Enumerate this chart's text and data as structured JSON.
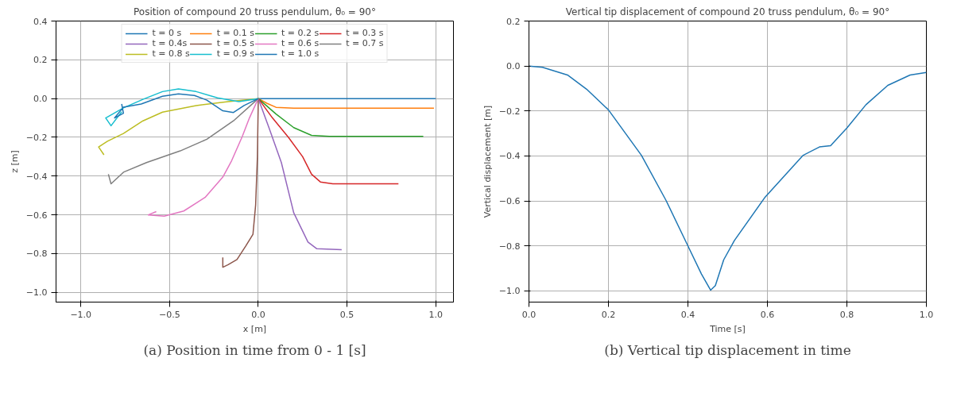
{
  "chart_data": [
    {
      "type": "line",
      "title": "Position of compound 20 truss pendulum, θ₀ = 90°",
      "xlabel": "x [m]",
      "ylabel": "z [m]",
      "xlim": [
        -1.14,
        1.1
      ],
      "ylim": [
        -1.05,
        0.4
      ],
      "xticks": [
        {
          "value": -1,
          "label": "−1.0"
        },
        {
          "value": -0.5,
          "label": "−0.5"
        },
        {
          "value": 0,
          "label": "0.0"
        },
        {
          "value": 0.5,
          "label": "0.5"
        },
        {
          "value": 1,
          "label": "1.0"
        }
      ],
      "yticks": [
        {
          "value": -1,
          "label": "−1.0"
        },
        {
          "value": -0.8,
          "label": "−0.8"
        },
        {
          "value": -0.6,
          "label": "−0.6"
        },
        {
          "value": -0.4,
          "label": "−0.4"
        },
        {
          "value": -0.2,
          "label": "−0.2"
        },
        {
          "value": 0,
          "label": "0.0"
        },
        {
          "value": 0.2,
          "label": "0.2"
        },
        {
          "value": 0.4,
          "label": "0.4"
        }
      ],
      "grid": true,
      "legend": "top",
      "annotations": [
        "(a) Position in time from 0 - 1 [s]"
      ],
      "series": [
        {
          "name": "t = 0 s",
          "color": "#1f77b4",
          "x": [
            0,
            1
          ],
          "values": [
            0,
            0
          ]
        },
        {
          "name": "t = 0.1 s",
          "color": "#ff7f0e",
          "x": [
            0,
            0.05,
            0.1,
            0.2,
            0.99
          ],
          "values": [
            0,
            -0.025,
            -0.045,
            -0.05,
            -0.05
          ]
        },
        {
          "name": "t = 0.2 s",
          "color": "#2ca02c",
          "x": [
            0,
            0.1,
            0.2,
            0.3,
            0.4,
            0.93
          ],
          "values": [
            0,
            -0.08,
            -0.15,
            -0.19,
            -0.195,
            -0.195
          ]
        },
        {
          "name": "t = 0.3 s",
          "color": "#d62728",
          "x": [
            0,
            0.08,
            0.17,
            0.25,
            0.3,
            0.35,
            0.42,
            0.79
          ],
          "values": [
            0,
            -0.1,
            -0.2,
            -0.3,
            -0.39,
            -0.43,
            -0.44,
            -0.44
          ]
        },
        {
          "name": "t = 0.4s",
          "color": "#9467bd",
          "x": [
            0,
            0.06,
            0.13,
            0.2,
            0.28,
            0.33,
            0.47
          ],
          "values": [
            0,
            -0.15,
            -0.33,
            -0.59,
            -0.74,
            -0.775,
            -0.78
          ]
        },
        {
          "name": "t = 0.5 s",
          "color": "#8c564b",
          "x": [
            0,
            -0.005,
            -0.015,
            -0.03,
            -0.07,
            -0.12,
            -0.17,
            -0.2,
            -0.2
          ],
          "values": [
            0,
            -0.3,
            -0.55,
            -0.7,
            -0.76,
            -0.83,
            -0.857,
            -0.87,
            -0.82
          ]
        },
        {
          "name": "t = 0.6 s",
          "color": "#e377c2",
          "x": [
            0,
            -0.05,
            -0.09,
            -0.15,
            -0.2,
            -0.3,
            -0.42,
            -0.53,
            -0.62,
            -0.575
          ],
          "values": [
            0,
            -0.1,
            -0.195,
            -0.32,
            -0.405,
            -0.51,
            -0.58,
            -0.607,
            -0.6,
            -0.583
          ]
        },
        {
          "name": "t = 0.7 s",
          "color": "#7f7f7f",
          "x": [
            0,
            -0.14,
            -0.29,
            -0.44,
            -0.63,
            -0.76,
            -0.83,
            -0.845
          ],
          "values": [
            0,
            -0.115,
            -0.21,
            -0.27,
            -0.33,
            -0.38,
            -0.44,
            -0.39
          ]
        },
        {
          "name": "t = 0.8 s",
          "color": "#bcbd22",
          "x": [
            0,
            -0.17,
            -0.35,
            -0.54,
            -0.65,
            -0.76,
            -0.85,
            -0.9,
            -0.87
          ],
          "values": [
            0,
            -0.016,
            -0.036,
            -0.07,
            -0.115,
            -0.18,
            -0.22,
            -0.25,
            -0.29
          ]
        },
        {
          "name": "t = 0.9 s",
          "color": "#17becf",
          "x": [
            0,
            -0.11,
            -0.23,
            -0.35,
            -0.45,
            -0.54,
            -0.65,
            -0.76,
            -0.86,
            -0.83,
            -0.77
          ],
          "values": [
            0,
            -0.016,
            0.004,
            0.036,
            0.05,
            0.036,
            -0.004,
            -0.048,
            -0.1,
            -0.14,
            -0.068
          ]
        },
        {
          "name": "t = 1.0 s",
          "color": "#1f77b4",
          "x": [
            0,
            -0.08,
            -0.14,
            -0.2,
            -0.29,
            -0.36,
            -0.45,
            -0.54,
            -0.66,
            -0.76,
            -0.81,
            -0.76,
            -0.77
          ],
          "values": [
            0,
            -0.036,
            -0.072,
            -0.063,
            -0.008,
            0.016,
            0.024,
            0.012,
            -0.028,
            -0.044,
            -0.1,
            -0.076,
            -0.028
          ]
        }
      ]
    },
    {
      "type": "line",
      "title": "Vertical tip displacement of compound 20 truss pendulum, θ₀ = 90°",
      "xlabel": "Time [s]",
      "ylabel": "Vertical displacement [m]",
      "xlim": [
        0,
        1
      ],
      "ylim": [
        -1.05,
        0.2
      ],
      "xticks": [
        {
          "value": 0,
          "label": "0.0"
        },
        {
          "value": 0.2,
          "label": "0.2"
        },
        {
          "value": 0.4,
          "label": "0.4"
        },
        {
          "value": 0.6,
          "label": "0.6"
        },
        {
          "value": 0.8,
          "label": "0.8"
        },
        {
          "value": 1,
          "label": "1.0"
        }
      ],
      "yticks": [
        {
          "value": -1,
          "label": "−1.0"
        },
        {
          "value": -0.8,
          "label": "−0.8"
        },
        {
          "value": -0.6,
          "label": "−0.6"
        },
        {
          "value": -0.4,
          "label": "−0.4"
        },
        {
          "value": -0.2,
          "label": "−0.2"
        },
        {
          "value": 0,
          "label": "0.0"
        },
        {
          "value": 0.2,
          "label": "0.2"
        }
      ],
      "grid": true,
      "annotations": [
        "(b) Vertical tip displacement in time"
      ],
      "series": [
        {
          "color": "#1f77b4",
          "x": [
            0,
            0.034,
            0.097,
            0.145,
            0.2,
            0.283,
            0.345,
            0.4,
            0.434,
            0.457,
            0.469,
            0.49,
            0.517,
            0.593,
            0.69,
            0.731,
            0.759,
            0.8,
            0.848,
            0.903,
            0.959,
            1.0
          ],
          "values": [
            0,
            -0.006,
            -0.04,
            -0.103,
            -0.195,
            -0.397,
            -0.598,
            -0.8,
            -0.925,
            -0.997,
            -0.977,
            -0.862,
            -0.776,
            -0.586,
            -0.397,
            -0.36,
            -0.354,
            -0.276,
            -0.172,
            -0.086,
            -0.04,
            -0.029
          ]
        }
      ]
    }
  ]
}
